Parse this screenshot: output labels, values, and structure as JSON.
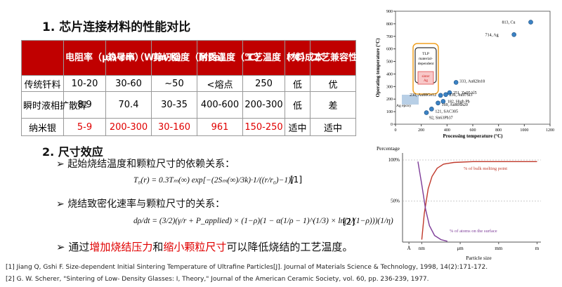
{
  "section1": {
    "title": "1. 芯片连接材料的性能对比"
  },
  "table": {
    "header": [
      "电阻率（μΩ·cm）",
      "热导率（W/m·K）",
      "剪切强度（MPa）",
      "耐受温度（℃）",
      "工艺温度（℃）",
      "材料成本",
      "工艺兼容性"
    ],
    "rows": [
      [
        "传统钎料",
        "10-20",
        "30-60",
        "~50",
        "<熔点",
        "250",
        "低",
        "优"
      ],
      [
        "瞬时液相扩散焊",
        "8.9",
        "70.4",
        "30-35",
        "400-600",
        "200-300",
        "低",
        "差"
      ],
      [
        "纳米银",
        "5-9",
        "200-300",
        "30-160",
        "961",
        "150-250",
        "适中",
        "适中"
      ]
    ]
  },
  "section2": {
    "title": "2. 尺寸效应",
    "bullets": [
      "起始烧结温度和颗粒尺寸的依赖关系：",
      "烧结致密化速率与颗粒尺寸的关系："
    ],
    "formulas": [
      {
        "text": "T₀(r) = 0.3Tₘ(∞) exp[−(2Sₘ(∞)/3k)·1/((r/r₀)−1)]",
        "ref": "[1]"
      },
      {
        "text": "dρ/dt = (3/2)(γ/r + P_applied) × (1−ρ)(1 − α(1/ρ − 1)^(1/3) × ln(1/(1−ρ)))(1/η)",
        "ref": "[2]"
      }
    ],
    "conclusion": [
      "通过",
      "增加烧结压力",
      "和",
      "缩小颗粒尺寸",
      "可以降低烧结的工艺温度。"
    ]
  },
  "references": [
    "[1] Jiang Q, Gshi F. Size-dependent Initial Sintering Temperature of Ultrafine Particles[J]. Journal of Materials Science & Technology, 1998, 14(2):171-172.",
    "[2] G. W. Scherer, \"Sintering of Low- Density Glasses: I, Theory,\" Journal of the American Ceramic Society, vol. 60, pp. 236-239, 1977."
  ],
  "scatter_chart": {
    "type": "scatter",
    "x_label": "Processing temperature (°C)",
    "y_label": "Operating temperature (°C)",
    "xlim": [
      0,
      1200
    ],
    "ylim": [
      0,
      900
    ],
    "xticks": [
      0,
      200,
      400,
      600,
      800,
      1000,
      1200
    ],
    "yticks": [
      0,
      100,
      200,
      300,
      400,
      500,
      600,
      700,
      800,
      900
    ],
    "color": "#3b82c4",
    "x": [
      1050,
      920,
      470,
      420,
      390,
      350,
      370,
      330,
      280,
      240
    ],
    "y": [
      813,
      714,
      333,
      251,
      236,
      230,
      182,
      169,
      121,
      92
    ],
    "point_labels": [
      "813, Cu",
      "714, Ag",
      "333, Au82In18",
      "251, Zn95Al5",
      "236, Au97Si3",
      "230, Au88Ge12",
      "182, High Pb",
      "169, Au80Sn20",
      "121, SAC305",
      "92, Sn63Pb37"
    ],
    "annotations": {
      "tlp": [
        "TLP",
        "material-",
        "dependent"
      ],
      "sinter": [
        "sinter",
        "Ag"
      ],
      "epoxy": "Ag epoxy"
    }
  },
  "size_chart": {
    "type": "line",
    "x_label": "Particle size",
    "y_label": "Percentage",
    "xlim": [
      -10.5,
      0.3
    ],
    "ylim": [
      0,
      100
    ],
    "xticks": [
      {
        "value": -10,
        "label": "Å"
      },
      {
        "value": -9,
        "label": "nm"
      },
      {
        "value": -6,
        "label": "μm"
      },
      {
        "value": -3,
        "label": "mm"
      },
      {
        "value": 0,
        "label": "m"
      }
    ],
    "yticks": [
      {
        "value": 100,
        "label": "100%"
      },
      {
        "value": 50,
        "label": "50%"
      }
    ],
    "series": [
      {
        "name": "% of bulk melting point",
        "color": "#c0392b",
        "x": [
          -9,
          -8.8,
          -8.5,
          -8.2,
          -7.8,
          -7.3,
          -6.5,
          -5,
          -3,
          0
        ],
        "values": [
          3,
          35,
          65,
          80,
          90,
          95,
          97,
          98,
          98,
          98
        ]
      },
      {
        "name": "% of atoms on the surface",
        "color": "#7d3c98",
        "x": [
          -9.3,
          -9,
          -8.7,
          -8.4,
          -8,
          -7.5,
          -7
        ],
        "values": [
          98,
          70,
          40,
          20,
          8,
          3,
          1
        ]
      }
    ]
  }
}
